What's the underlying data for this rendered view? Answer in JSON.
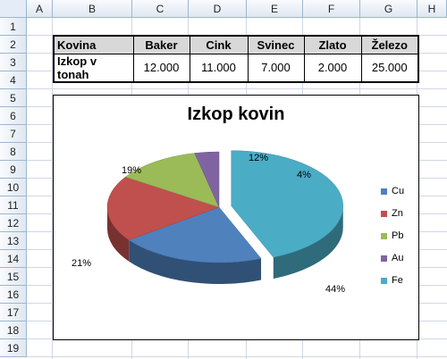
{
  "columns": [
    "A",
    "B",
    "C",
    "D",
    "E",
    "F",
    "G",
    "H"
  ],
  "rows": [
    "1",
    "2",
    "3",
    "4",
    "5",
    "6",
    "7",
    "8",
    "9",
    "10",
    "11",
    "12",
    "13",
    "14",
    "15",
    "16",
    "17",
    "18",
    "19"
  ],
  "table": {
    "header_label": "Kovina",
    "value_label": "Izkop v tonah",
    "metals": [
      "Baker",
      "Cink",
      "Svinec",
      "Zlato",
      "Železo"
    ],
    "values": [
      "12.000",
      "11.000",
      "7.000",
      "2.000",
      "25.000"
    ]
  },
  "chart_data": {
    "type": "pie",
    "title": "Izkop kovin",
    "categories": [
      "Cu",
      "Zn",
      "Pb",
      "Au",
      "Fe"
    ],
    "values": [
      12000,
      11000,
      7000,
      2000,
      25000
    ],
    "percent_labels": [
      "21%",
      "19%",
      "12%",
      "4%",
      "44%"
    ],
    "colors": [
      "#4f81bd",
      "#c0504d",
      "#9bbb59",
      "#8064a2",
      "#4bacc6"
    ],
    "legend": "right",
    "exploded": "Fe"
  }
}
